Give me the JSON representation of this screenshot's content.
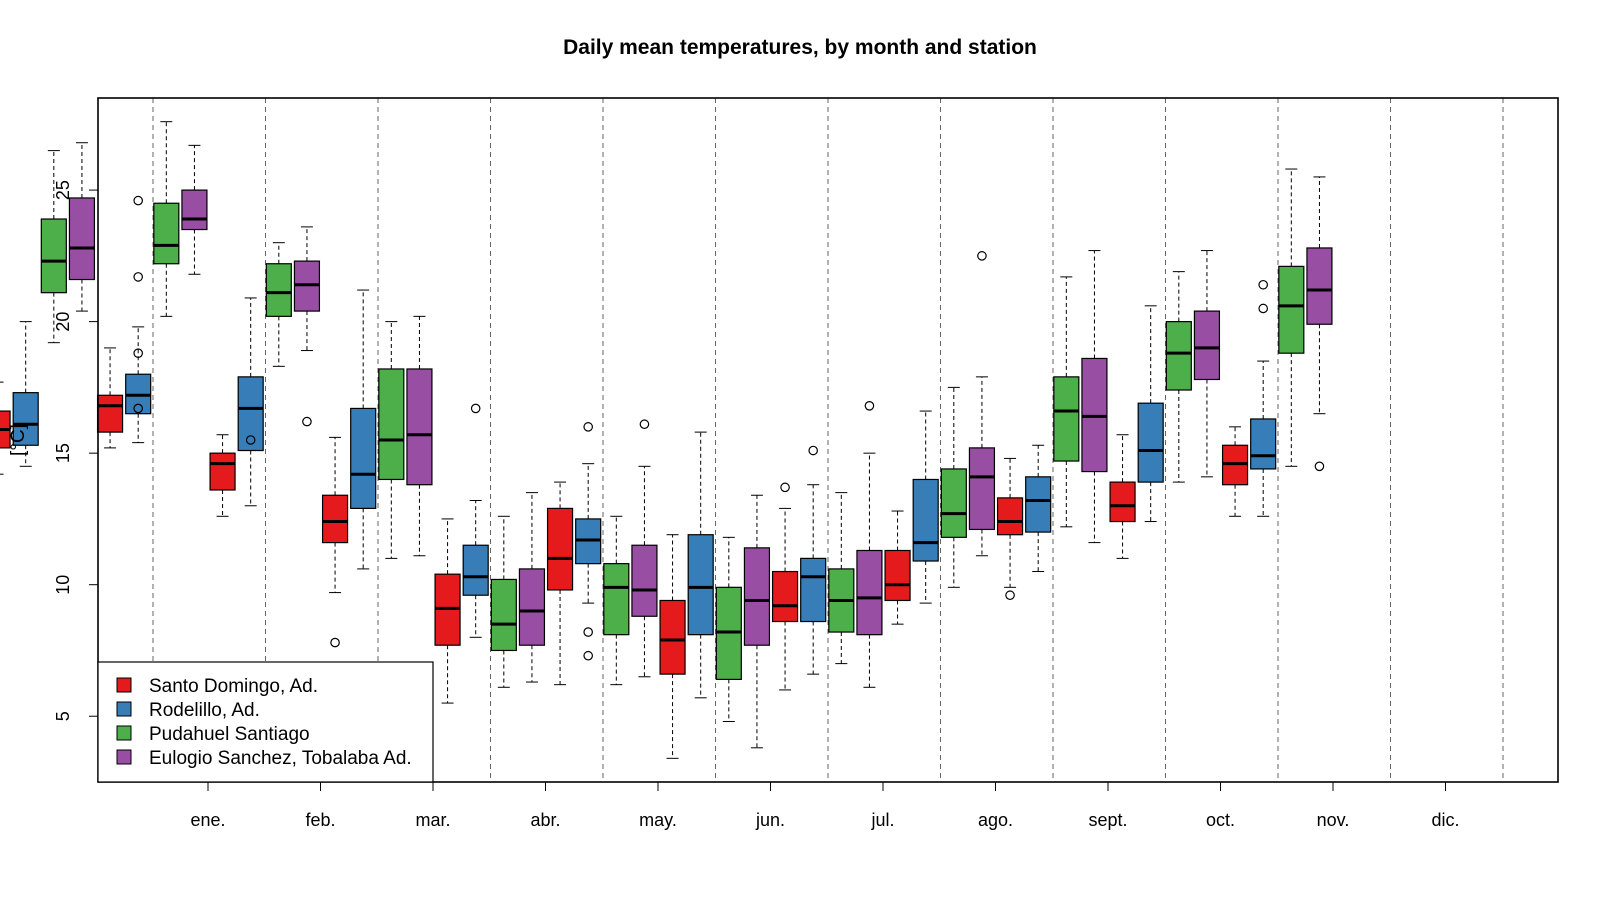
{
  "chart_data": {
    "type": "box",
    "title": "Daily mean temperatures, by month and station",
    "xlabel": "",
    "ylabel": "[°C]",
    "ylim": [
      2.5,
      28.5
    ],
    "yticks": [
      5,
      10,
      15,
      20,
      25
    ],
    "grid": "vertical dashed separators between months",
    "legend_position": "bottom-left",
    "categories": [
      "ene.",
      "feb.",
      "mar.",
      "abr.",
      "may.",
      "jun.",
      "jul.",
      "ago.",
      "sept.",
      "oct.",
      "nov.",
      "dic."
    ],
    "series": [
      {
        "name": "Santo Domingo, Ad.",
        "color": "#E41A1C",
        "boxes": [
          {
            "lw": 14.2,
            "q1": 15.2,
            "med": 15.9,
            "q3": 16.6,
            "uw": 17.7,
            "out": []
          },
          {
            "lw": 15.2,
            "q1": 15.8,
            "med": 16.8,
            "q3": 17.2,
            "uw": 19.0,
            "out": []
          },
          {
            "lw": 12.6,
            "q1": 13.6,
            "med": 14.6,
            "q3": 15.0,
            "uw": 15.7,
            "out": []
          },
          {
            "lw": 9.7,
            "q1": 11.6,
            "med": 12.4,
            "q3": 13.4,
            "uw": 15.6,
            "out": [
              7.8
            ]
          },
          {
            "lw": 5.5,
            "q1": 7.7,
            "med": 9.1,
            "q3": 10.4,
            "uw": 12.5,
            "out": []
          },
          {
            "lw": 6.2,
            "q1": 9.8,
            "med": 11.0,
            "q3": 12.9,
            "uw": 13.9,
            "out": []
          },
          {
            "lw": 3.4,
            "q1": 6.6,
            "med": 7.9,
            "q3": 9.4,
            "uw": 11.9,
            "out": []
          },
          {
            "lw": 6.0,
            "q1": 8.6,
            "med": 9.2,
            "q3": 10.5,
            "uw": 12.9,
            "out": [
              13.7
            ]
          },
          {
            "lw": 8.5,
            "q1": 9.4,
            "med": 10.0,
            "q3": 11.3,
            "uw": 12.8,
            "out": []
          },
          {
            "lw": 9.9,
            "q1": 11.9,
            "med": 12.4,
            "q3": 13.3,
            "uw": 14.8,
            "out": [
              9.6
            ]
          },
          {
            "lw": 11.0,
            "q1": 12.4,
            "med": 13.0,
            "q3": 13.9,
            "uw": 15.7,
            "out": []
          },
          {
            "lw": 12.6,
            "q1": 13.8,
            "med": 14.6,
            "q3": 15.3,
            "uw": 16.0,
            "out": []
          }
        ]
      },
      {
        "name": "Rodelillo, Ad.",
        "color": "#377EB8",
        "boxes": [
          {
            "lw": 14.5,
            "q1": 15.3,
            "med": 16.1,
            "q3": 17.3,
            "uw": 20.0,
            "out": []
          },
          {
            "lw": 15.4,
            "q1": 16.5,
            "med": 17.2,
            "q3": 18.0,
            "uw": 19.8,
            "out": [
              24.6,
              21.7,
              18.8,
              16.7
            ]
          },
          {
            "lw": 13.0,
            "q1": 15.1,
            "med": 16.7,
            "q3": 17.9,
            "uw": 20.9,
            "out": [
              15.5
            ]
          },
          {
            "lw": 10.6,
            "q1": 12.9,
            "med": 14.2,
            "q3": 16.7,
            "uw": 21.2,
            "out": []
          },
          {
            "lw": 8.0,
            "q1": 9.6,
            "med": 10.3,
            "q3": 11.5,
            "uw": 13.2,
            "out": [
              16.7
            ]
          },
          {
            "lw": 9.3,
            "q1": 10.8,
            "med": 11.7,
            "q3": 12.5,
            "uw": 14.6,
            "out": [
              16.0,
              8.2,
              7.3
            ]
          },
          {
            "lw": 5.7,
            "q1": 8.1,
            "med": 9.9,
            "q3": 11.9,
            "uw": 15.8,
            "out": []
          },
          {
            "lw": 6.6,
            "q1": 8.6,
            "med": 10.3,
            "q3": 11.0,
            "uw": 13.8,
            "out": [
              15.1
            ]
          },
          {
            "lw": 9.3,
            "q1": 10.9,
            "med": 11.6,
            "q3": 14.0,
            "uw": 16.6,
            "out": []
          },
          {
            "lw": 10.5,
            "q1": 12.0,
            "med": 13.2,
            "q3": 14.1,
            "uw": 15.3,
            "out": []
          },
          {
            "lw": 12.4,
            "q1": 13.9,
            "med": 15.1,
            "q3": 16.9,
            "uw": 20.6,
            "out": []
          },
          {
            "lw": 12.6,
            "q1": 14.4,
            "med": 14.9,
            "q3": 16.3,
            "uw": 18.5,
            "out": [
              21.4,
              20.5
            ]
          }
        ]
      },
      {
        "name": "Pudahuel Santiago",
        "color": "#4DAF4A",
        "boxes": [
          {
            "lw": 19.2,
            "q1": 21.1,
            "med": 22.3,
            "q3": 23.9,
            "uw": 26.5,
            "out": []
          },
          {
            "lw": 20.2,
            "q1": 22.2,
            "med": 22.9,
            "q3": 24.5,
            "uw": 27.6,
            "out": []
          },
          {
            "lw": 18.3,
            "q1": 20.2,
            "med": 21.1,
            "q3": 22.2,
            "uw": 23.0,
            "out": []
          },
          {
            "lw": 11.0,
            "q1": 14.0,
            "med": 15.5,
            "q3": 18.2,
            "uw": 20.0,
            "out": []
          },
          {
            "lw": 6.1,
            "q1": 7.5,
            "med": 8.5,
            "q3": 10.2,
            "uw": 12.6,
            "out": []
          },
          {
            "lw": 6.2,
            "q1": 8.1,
            "med": 9.9,
            "q3": 10.8,
            "uw": 12.6,
            "out": []
          },
          {
            "lw": 4.8,
            "q1": 6.4,
            "med": 8.2,
            "q3": 9.9,
            "uw": 11.8,
            "out": []
          },
          {
            "lw": 7.0,
            "q1": 8.2,
            "med": 9.4,
            "q3": 10.6,
            "uw": 13.5,
            "out": []
          },
          {
            "lw": 9.9,
            "q1": 11.8,
            "med": 12.7,
            "q3": 14.4,
            "uw": 17.5,
            "out": []
          },
          {
            "lw": 12.2,
            "q1": 14.7,
            "med": 16.6,
            "q3": 17.9,
            "uw": 21.7,
            "out": []
          },
          {
            "lw": 13.9,
            "q1": 17.4,
            "med": 18.8,
            "q3": 20.0,
            "uw": 21.9,
            "out": []
          },
          {
            "lw": 14.5,
            "q1": 18.8,
            "med": 20.6,
            "q3": 22.1,
            "uw": 25.8,
            "out": []
          }
        ]
      },
      {
        "name": "Eulogio Sanchez, Tobalaba Ad.",
        "color": "#984EA3",
        "boxes": [
          {
            "lw": 20.4,
            "q1": 21.6,
            "med": 22.8,
            "q3": 24.7,
            "uw": 26.8,
            "out": []
          },
          {
            "lw": 21.8,
            "q1": 23.5,
            "med": 23.9,
            "q3": 25.0,
            "uw": 26.7,
            "out": []
          },
          {
            "lw": 18.9,
            "q1": 20.4,
            "med": 21.4,
            "q3": 22.3,
            "uw": 23.6,
            "out": [
              16.2
            ]
          },
          {
            "lw": 11.1,
            "q1": 13.8,
            "med": 15.7,
            "q3": 18.2,
            "uw": 20.2,
            "out": []
          },
          {
            "lw": 6.3,
            "q1": 7.7,
            "med": 9.0,
            "q3": 10.6,
            "uw": 13.5,
            "out": []
          },
          {
            "lw": 6.5,
            "q1": 8.8,
            "med": 9.8,
            "q3": 11.5,
            "uw": 14.5,
            "out": [
              16.1
            ]
          },
          {
            "lw": 3.8,
            "q1": 7.7,
            "med": 9.4,
            "q3": 11.4,
            "uw": 13.4,
            "out": []
          },
          {
            "lw": 6.1,
            "q1": 8.1,
            "med": 9.5,
            "q3": 11.3,
            "uw": 15.0,
            "out": [
              16.8
            ]
          },
          {
            "lw": 11.1,
            "q1": 12.1,
            "med": 14.1,
            "q3": 15.2,
            "uw": 17.9,
            "out": [
              22.5
            ]
          },
          {
            "lw": 11.6,
            "q1": 14.3,
            "med": 16.4,
            "q3": 18.6,
            "uw": 22.7,
            "out": []
          },
          {
            "lw": 14.1,
            "q1": 17.8,
            "med": 19.0,
            "q3": 20.4,
            "uw": 22.7,
            "out": []
          },
          {
            "lw": 16.5,
            "q1": 19.9,
            "med": 21.2,
            "q3": 22.8,
            "uw": 25.5,
            "out": [
              14.5
            ]
          }
        ]
      }
    ]
  }
}
